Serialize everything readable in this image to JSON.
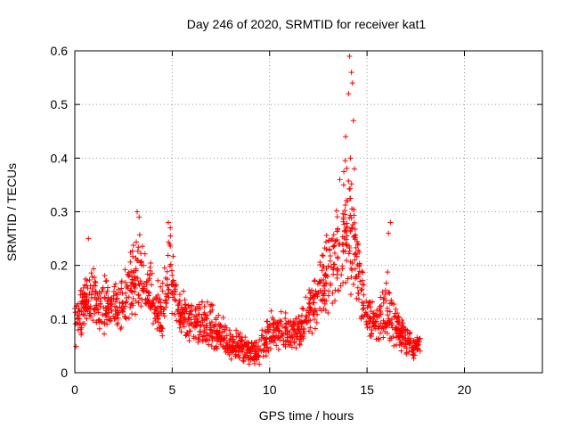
{
  "chart_data": {
    "type": "scatter",
    "title": "Day 246 of 2020, SRMTID for receiver kat1",
    "xlabel": "GPS time / hours",
    "ylabel": "SRMTID / TECUs",
    "xlim": [
      0,
      24
    ],
    "ylim": [
      0,
      0.6
    ],
    "xticks": [
      0,
      5,
      10,
      15,
      20
    ],
    "yticks": [
      0,
      0.1,
      0.2,
      0.3,
      0.4,
      0.5,
      0.6
    ],
    "grid": true,
    "marker": "+",
    "color": "#ff0000",
    "x_end": 17.75,
    "envelope": [
      {
        "t": 0.0,
        "lo": 0.04,
        "mid": 0.1,
        "hi": 0.13
      },
      {
        "t": 0.5,
        "lo": 0.08,
        "mid": 0.13,
        "hi": 0.19
      },
      {
        "t": 1.0,
        "lo": 0.08,
        "mid": 0.14,
        "hi": 0.21
      },
      {
        "t": 1.5,
        "lo": 0.05,
        "mid": 0.12,
        "hi": 0.2
      },
      {
        "t": 2.0,
        "lo": 0.07,
        "mid": 0.12,
        "hi": 0.18
      },
      {
        "t": 2.5,
        "lo": 0.07,
        "mid": 0.13,
        "hi": 0.2
      },
      {
        "t": 3.0,
        "lo": 0.1,
        "mid": 0.17,
        "hi": 0.27
      },
      {
        "t": 3.5,
        "lo": 0.11,
        "mid": 0.17,
        "hi": 0.27
      },
      {
        "t": 4.0,
        "lo": 0.08,
        "mid": 0.13,
        "hi": 0.2
      },
      {
        "t": 4.5,
        "lo": 0.06,
        "mid": 0.11,
        "hi": 0.17
      },
      {
        "t": 4.9,
        "lo": 0.1,
        "mid": 0.18,
        "hi": 0.27
      },
      {
        "t": 5.3,
        "lo": 0.07,
        "mid": 0.12,
        "hi": 0.19
      },
      {
        "t": 6.0,
        "lo": 0.05,
        "mid": 0.09,
        "hi": 0.13
      },
      {
        "t": 6.5,
        "lo": 0.05,
        "mid": 0.09,
        "hi": 0.15
      },
      {
        "t": 7.0,
        "lo": 0.04,
        "mid": 0.08,
        "hi": 0.14
      },
      {
        "t": 7.5,
        "lo": 0.04,
        "mid": 0.07,
        "hi": 0.11
      },
      {
        "t": 8.0,
        "lo": 0.02,
        "mid": 0.05,
        "hi": 0.09
      },
      {
        "t": 8.5,
        "lo": 0.02,
        "mid": 0.05,
        "hi": 0.08
      },
      {
        "t": 9.0,
        "lo": 0.01,
        "mid": 0.04,
        "hi": 0.07
      },
      {
        "t": 9.5,
        "lo": 0.01,
        "mid": 0.04,
        "hi": 0.07
      },
      {
        "t": 10.0,
        "lo": 0.03,
        "mid": 0.07,
        "hi": 0.12
      },
      {
        "t": 10.5,
        "lo": 0.04,
        "mid": 0.08,
        "hi": 0.12
      },
      {
        "t": 11.0,
        "lo": 0.04,
        "mid": 0.07,
        "hi": 0.11
      },
      {
        "t": 11.5,
        "lo": 0.04,
        "mid": 0.08,
        "hi": 0.12
      },
      {
        "t": 12.0,
        "lo": 0.06,
        "mid": 0.11,
        "hi": 0.16
      },
      {
        "t": 12.5,
        "lo": 0.08,
        "mid": 0.15,
        "hi": 0.21
      },
      {
        "t": 13.0,
        "lo": 0.1,
        "mid": 0.19,
        "hi": 0.28
      },
      {
        "t": 13.5,
        "lo": 0.12,
        "mid": 0.23,
        "hi": 0.34
      },
      {
        "t": 14.0,
        "lo": 0.15,
        "mid": 0.28,
        "hi": 0.43
      },
      {
        "t": 14.5,
        "lo": 0.1,
        "mid": 0.2,
        "hi": 0.3
      },
      {
        "t": 15.0,
        "lo": 0.06,
        "mid": 0.11,
        "hi": 0.16
      },
      {
        "t": 15.5,
        "lo": 0.05,
        "mid": 0.08,
        "hi": 0.12
      },
      {
        "t": 16.0,
        "lo": 0.05,
        "mid": 0.11,
        "hi": 0.2
      },
      {
        "t": 16.5,
        "lo": 0.04,
        "mid": 0.08,
        "hi": 0.13
      },
      {
        "t": 17.0,
        "lo": 0.03,
        "mid": 0.06,
        "hi": 0.09
      },
      {
        "t": 17.5,
        "lo": 0.02,
        "mid": 0.05,
        "hi": 0.07
      }
    ],
    "notable_points": [
      {
        "x": 14.1,
        "y": 0.59
      },
      {
        "x": 14.2,
        "y": 0.56
      },
      {
        "x": 14.25,
        "y": 0.54
      },
      {
        "x": 14.05,
        "y": 0.52
      },
      {
        "x": 14.3,
        "y": 0.47
      },
      {
        "x": 14.15,
        "y": 0.4
      },
      {
        "x": 13.9,
        "y": 0.44
      },
      {
        "x": 14.35,
        "y": 0.38
      },
      {
        "x": 3.2,
        "y": 0.3
      },
      {
        "x": 3.3,
        "y": 0.29
      },
      {
        "x": 4.8,
        "y": 0.28
      },
      {
        "x": 4.9,
        "y": 0.27
      },
      {
        "x": 16.2,
        "y": 0.28
      },
      {
        "x": 16.1,
        "y": 0.26
      },
      {
        "x": 0.7,
        "y": 0.25
      },
      {
        "x": 13.6,
        "y": 0.36
      },
      {
        "x": 13.8,
        "y": 0.35
      }
    ]
  }
}
